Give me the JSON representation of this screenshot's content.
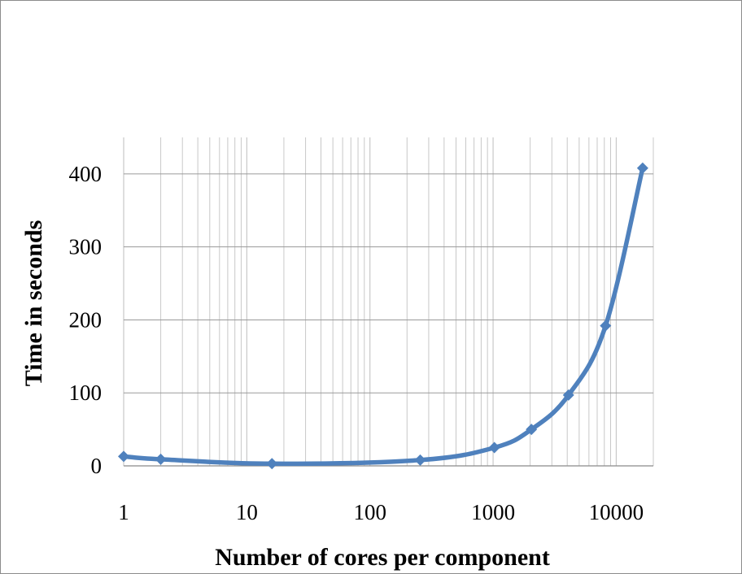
{
  "chart_data": {
    "type": "line",
    "xlabel": "Number of cores per component",
    "ylabel": "Time in seconds",
    "x_scale": "log",
    "xlim": [
      1,
      20000
    ],
    "ylim": [
      0,
      450
    ],
    "x_ticks": [
      1,
      10,
      100,
      1000,
      10000
    ],
    "x_tick_labels": [
      "1",
      "10",
      "100",
      "1000",
      "10000"
    ],
    "y_ticks": [
      0,
      100,
      200,
      300,
      400
    ],
    "y_tick_labels": [
      "0",
      "100",
      "200",
      "300",
      "400"
    ],
    "grid": true,
    "series": [
      {
        "color": "#4F81BD",
        "marker": "diamond",
        "x": [
          1,
          2,
          16,
          256,
          1024,
          2048,
          4096,
          8192,
          16384
        ],
        "y": [
          13,
          9,
          3,
          8,
          25,
          50,
          97,
          192,
          408
        ]
      }
    ]
  }
}
